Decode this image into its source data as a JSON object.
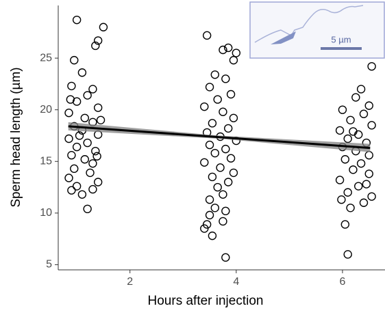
{
  "chart_data": {
    "type": "scatter",
    "x_label": "Hours after injection",
    "y_label": "Sperm head length (µm)",
    "inset_label": "5 µm",
    "xlim": [
      0.65,
      6.8
    ],
    "xticks": [
      2,
      4,
      6
    ],
    "ylim": [
      4.5,
      30.1
    ],
    "yticks": [
      5,
      10,
      15,
      20,
      25
    ],
    "grid": false,
    "color": "#000000",
    "points": {
      "x": [
        1.0,
        1.5,
        1.4,
        1.35,
        0.95,
        1.1,
        0.9,
        1.3,
        1.2,
        1.0,
        1.4,
        0.85,
        1.15,
        1.3,
        0.95,
        1.1,
        1.4,
        0.85,
        1.2,
        1.0,
        1.35,
        0.9,
        1.15,
        1.3,
        0.95,
        1.25,
        0.85,
        1.4,
        1.0,
        0.9,
        1.3,
        1.1,
        1.2,
        1.45,
        0.88,
        1.05,
        1.38,
        3.45,
        3.85,
        3.75,
        4.0,
        3.95,
        3.6,
        3.8,
        3.5,
        3.9,
        3.65,
        3.4,
        3.75,
        3.95,
        3.55,
        3.85,
        3.45,
        3.7,
        4.0,
        3.5,
        3.8,
        3.6,
        3.9,
        3.4,
        3.7,
        3.95,
        3.55,
        3.85,
        3.65,
        3.75,
        3.5,
        3.6,
        3.8,
        3.45,
        3.4,
        3.55,
        3.75,
        3.8,
        3.5,
        6.55,
        6.35,
        6.25,
        6.5,
        6.0,
        6.4,
        6.15,
        6.55,
        5.95,
        6.3,
        6.1,
        6.45,
        6.0,
        6.25,
        6.5,
        6.05,
        6.35,
        6.2,
        6.5,
        5.95,
        6.3,
        6.1,
        6.55,
        5.98,
        6.4,
        6.15,
        6.05,
        6.1,
        6.45,
        6.2
      ],
      "values": [
        28.7,
        28.0,
        26.7,
        26.2,
        24.8,
        23.6,
        22.3,
        22.0,
        21.4,
        20.8,
        20.2,
        19.7,
        19.2,
        18.8,
        18.4,
        18.0,
        17.6,
        17.2,
        16.8,
        16.4,
        16.0,
        15.6,
        15.2,
        14.8,
        14.3,
        13.9,
        13.4,
        13.0,
        12.6,
        12.2,
        12.3,
        11.8,
        10.4,
        19.0,
        21.0,
        17.5,
        15.5,
        27.2,
        26.0,
        25.8,
        25.5,
        24.8,
        23.4,
        23.0,
        22.2,
        21.5,
        21.0,
        20.3,
        19.8,
        19.2,
        18.7,
        18.2,
        17.8,
        17.4,
        17.0,
        16.6,
        16.2,
        15.8,
        15.3,
        14.9,
        14.4,
        13.9,
        13.5,
        13.0,
        12.5,
        11.8,
        11.3,
        10.5,
        10.2,
        8.9,
        8.5,
        7.8,
        9.2,
        5.7,
        9.8,
        24.2,
        22.0,
        21.2,
        20.4,
        20.0,
        19.6,
        19.0,
        18.5,
        18.0,
        17.6,
        17.2,
        16.8,
        16.4,
        16.0,
        15.6,
        15.2,
        14.8,
        14.2,
        13.8,
        13.2,
        12.6,
        12.0,
        11.6,
        11.3,
        11.0,
        10.5,
        8.9,
        6.0,
        12.8,
        17.9
      ]
    },
    "fit": {
      "x": [
        0.84,
        3.68,
        6.52
      ],
      "values": [
        18.4,
        17.35,
        16.3
      ],
      "lower": [
        18.0,
        17.2,
        15.9
      ],
      "upper": [
        18.8,
        17.5,
        16.7
      ],
      "color": "#000000",
      "band_color": "#808080"
    }
  }
}
